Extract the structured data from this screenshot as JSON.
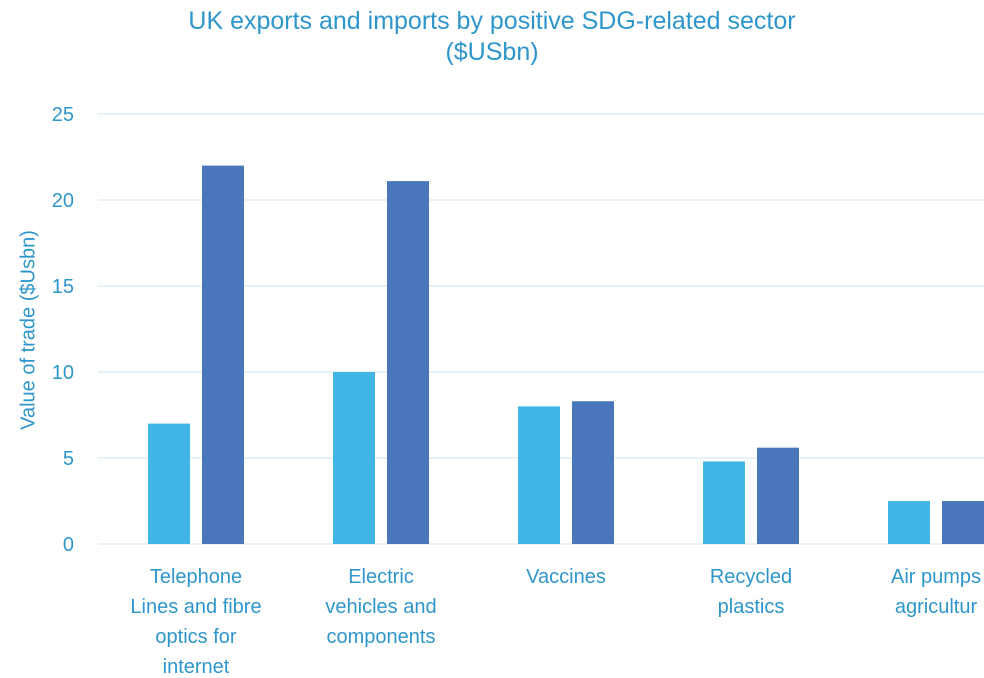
{
  "chart_data": {
    "type": "bar",
    "title": "UK exports and imports by positive SDG-related sector\n($USbn)",
    "ylabel": "Value of trade ($Usbn)",
    "xlabel": "",
    "ylim": [
      0,
      25
    ],
    "yticks": [
      "0",
      "5",
      "10",
      "15",
      "20",
      "25"
    ],
    "grid": true,
    "categories": [
      "Telephone Lines and fibre optics for internet",
      "Electric vehicles and components",
      "Vaccines",
      "Recycled plastics",
      "Air pumps agricultur"
    ],
    "category_lines": [
      [
        "Telephone",
        "Lines and fibre",
        "optics for",
        "internet"
      ],
      [
        "Electric",
        "vehicles and",
        "components"
      ],
      [
        "Vaccines"
      ],
      [
        "Recycled",
        "plastics"
      ],
      [
        "Air pumps",
        "agricultur"
      ]
    ],
    "series": [
      {
        "values": [
          7.0,
          10.0,
          8.0,
          4.8,
          2.5
        ],
        "color": "#41b6e6"
      },
      {
        "values": [
          22.0,
          21.1,
          8.3,
          5.6,
          2.5
        ],
        "color": "#4a76bc"
      }
    ]
  },
  "colors": {
    "text": "#2e96cb",
    "grid": "#cfe4f2"
  }
}
